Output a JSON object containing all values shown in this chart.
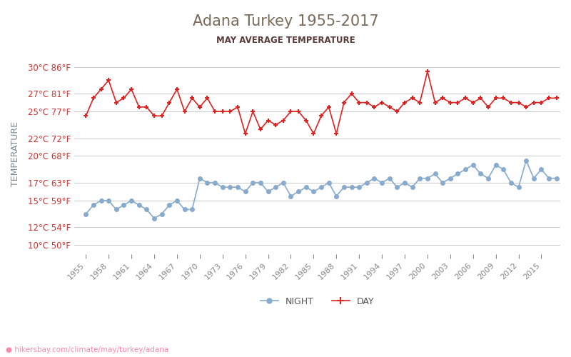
{
  "title": "Adana Turkey 1955-2017",
  "subtitle": "MAY AVERAGE TEMPERATURE",
  "ylabel": "TEMPERATURE",
  "background_color": "#ffffff",
  "title_color": "#7a6a5a",
  "subtitle_color": "#5a3a3a",
  "ylabel_color": "#7a8a9a",
  "grid_color": "#cccccc",
  "years": [
    1955,
    1956,
    1957,
    1958,
    1959,
    1960,
    1961,
    1962,
    1963,
    1964,
    1965,
    1966,
    1967,
    1968,
    1969,
    1970,
    1971,
    1972,
    1973,
    1974,
    1975,
    1976,
    1977,
    1978,
    1979,
    1980,
    1981,
    1982,
    1983,
    1984,
    1985,
    1986,
    1987,
    1988,
    1989,
    1990,
    1991,
    1992,
    1993,
    1994,
    1995,
    1996,
    1997,
    1998,
    1999,
    2000,
    2001,
    2002,
    2003,
    2004,
    2005,
    2006,
    2007,
    2008,
    2009,
    2010,
    2011,
    2012,
    2013,
    2014,
    2015,
    2016,
    2017
  ],
  "day_temps": [
    24.5,
    26.5,
    27.5,
    28.5,
    26.0,
    26.5,
    27.5,
    25.5,
    25.5,
    24.5,
    24.5,
    26.0,
    27.5,
    25.0,
    26.5,
    25.5,
    26.5,
    25.0,
    25.0,
    25.0,
    25.5,
    22.5,
    25.0,
    23.0,
    24.0,
    23.5,
    24.0,
    25.0,
    25.0,
    24.0,
    22.5,
    24.5,
    25.5,
    22.5,
    26.0,
    27.0,
    26.0,
    26.0,
    25.5,
    26.0,
    25.5,
    25.0,
    26.0,
    26.5,
    26.0,
    29.5,
    26.0,
    26.5,
    26.0,
    26.0,
    26.5,
    26.0,
    26.5,
    25.5,
    26.5,
    26.5,
    26.0,
    26.0,
    25.5,
    26.0,
    26.0,
    26.5,
    26.5
  ],
  "night_temps": [
    13.5,
    14.5,
    15.0,
    15.0,
    14.0,
    14.5,
    15.0,
    14.5,
    14.0,
    13.0,
    13.5,
    14.5,
    15.0,
    14.0,
    14.0,
    17.5,
    17.0,
    17.0,
    16.5,
    16.5,
    16.5,
    16.0,
    17.0,
    17.0,
    16.0,
    16.5,
    17.0,
    15.5,
    16.0,
    16.5,
    16.0,
    16.5,
    17.0,
    15.5,
    16.5,
    16.5,
    16.5,
    17.0,
    17.5,
    17.0,
    17.5,
    16.5,
    17.0,
    16.5,
    17.5,
    17.5,
    18.0,
    17.0,
    17.5,
    18.0,
    18.5,
    19.0,
    18.0,
    17.5,
    19.0,
    18.5,
    17.0,
    16.5,
    19.5,
    17.5,
    18.5,
    17.5,
    17.5
  ],
  "day_color": "#dd2222",
  "night_color": "#88aacc",
  "yticks_celsius": [
    10,
    12,
    15,
    17,
    20,
    22,
    25,
    27,
    30
  ],
  "yticks_labels": [
    "10°C 50°F",
    "12°C 54°F",
    "15°C 59°F",
    "17°C 63°F",
    "20°C 68°F",
    "22°C 72°F",
    "25°C 77°F",
    "27°C 81°F",
    "30°C 86°F"
  ],
  "xtick_years": [
    1955,
    1958,
    1961,
    1964,
    1967,
    1970,
    1973,
    1976,
    1979,
    1982,
    1985,
    1988,
    1991,
    1994,
    1997,
    2000,
    2003,
    2006,
    2009,
    2012,
    2015
  ],
  "ymin": 9,
  "ymax": 31.5,
  "watermark": "hikersbay.com/climate/may/turkey/adana",
  "watermark_color": "#ff88aa"
}
